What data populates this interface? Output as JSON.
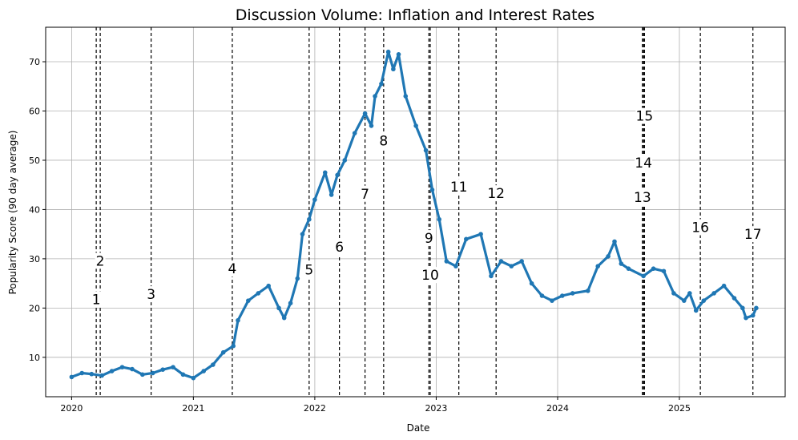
{
  "chart_data": {
    "type": "scatter",
    "title": "Discussion Volume: Inflation and Interest Rates",
    "xlabel": "Date",
    "ylabel": "Popularity Score (90 day average)",
    "xlim": [
      "2019-10-15",
      "2025-11-15"
    ],
    "ylim": [
      2,
      77
    ],
    "x_ticks": [
      "2020-01-01",
      "2021-01-01",
      "2022-01-01",
      "2023-01-01",
      "2024-01-01",
      "2025-01-01"
    ],
    "x_tick_labels": [
      "2020",
      "2021",
      "2022",
      "2023",
      "2024",
      "2025"
    ],
    "y_ticks": [
      10,
      20,
      30,
      40,
      50,
      60,
      70
    ],
    "grid": true,
    "colors": {
      "series": "#1f77b4",
      "grid": "#b0b0b0",
      "event_line": "#000000"
    },
    "series": [
      {
        "points": [
          [
            "2020-01-01",
            6.0
          ],
          [
            "2020-02-01",
            6.8
          ],
          [
            "2020-03-01",
            6.6
          ],
          [
            "2020-04-01",
            6.3
          ],
          [
            "2020-05-01",
            7.2
          ],
          [
            "2020-06-01",
            8.0
          ],
          [
            "2020-07-01",
            7.6
          ],
          [
            "2020-08-01",
            6.5
          ],
          [
            "2020-09-01",
            6.8
          ],
          [
            "2020-10-01",
            7.5
          ],
          [
            "2020-11-01",
            8.0
          ],
          [
            "2020-12-01",
            6.5
          ],
          [
            "2021-01-01",
            5.8
          ],
          [
            "2021-02-01",
            7.2
          ],
          [
            "2021-03-01",
            8.5
          ],
          [
            "2021-04-01",
            11.0
          ],
          [
            "2021-05-01",
            12.3
          ],
          [
            "2021-05-15",
            17.5
          ],
          [
            "2021-06-15",
            21.5
          ],
          [
            "2021-07-15",
            23.0
          ],
          [
            "2021-08-15",
            24.5
          ],
          [
            "2021-09-15",
            20.0
          ],
          [
            "2021-10-01",
            18.0
          ],
          [
            "2021-10-20",
            21.0
          ],
          [
            "2021-11-10",
            26.0
          ],
          [
            "2021-11-25",
            35.0
          ],
          [
            "2021-12-15",
            38.0
          ],
          [
            "2022-01-01",
            42.0
          ],
          [
            "2022-02-01",
            47.5
          ],
          [
            "2022-02-20",
            43.0
          ],
          [
            "2022-03-10",
            47.0
          ],
          [
            "2022-04-01",
            50.0
          ],
          [
            "2022-05-01",
            55.5
          ],
          [
            "2022-06-01",
            59.5
          ],
          [
            "2022-06-20",
            57.0
          ],
          [
            "2022-07-01",
            63.0
          ],
          [
            "2022-07-20",
            65.5
          ],
          [
            "2022-08-10",
            72.0
          ],
          [
            "2022-08-25",
            68.5
          ],
          [
            "2022-09-10",
            71.5
          ],
          [
            "2022-10-01",
            63.0
          ],
          [
            "2022-11-01",
            57.0
          ],
          [
            "2022-12-01",
            52.0
          ],
          [
            "2022-12-20",
            44.0
          ],
          [
            "2023-01-10",
            38.0
          ],
          [
            "2023-02-01",
            29.5
          ],
          [
            "2023-03-01",
            28.5
          ],
          [
            "2023-04-01",
            34.0
          ],
          [
            "2023-05-15",
            35.0
          ],
          [
            "2023-06-15",
            26.5
          ],
          [
            "2023-07-15",
            29.5
          ],
          [
            "2023-08-15",
            28.5
          ],
          [
            "2023-09-15",
            29.5
          ],
          [
            "2023-10-15",
            25.0
          ],
          [
            "2023-11-15",
            22.5
          ],
          [
            "2023-12-15",
            21.5
          ],
          [
            "2024-01-15",
            22.5
          ],
          [
            "2024-02-15",
            23.0
          ],
          [
            "2024-04-01",
            23.5
          ],
          [
            "2024-05-01",
            28.5
          ],
          [
            "2024-06-01",
            30.5
          ],
          [
            "2024-06-20",
            33.5
          ],
          [
            "2024-07-10",
            29.0
          ],
          [
            "2024-08-01",
            28.0
          ],
          [
            "2024-09-15",
            26.5
          ],
          [
            "2024-10-15",
            28.0
          ],
          [
            "2024-11-15",
            27.5
          ],
          [
            "2024-12-15",
            23.0
          ],
          [
            "2025-01-15",
            21.5
          ],
          [
            "2025-02-01",
            23.0
          ],
          [
            "2025-02-20",
            19.5
          ],
          [
            "2025-03-15",
            21.5
          ],
          [
            "2025-04-15",
            23.0
          ],
          [
            "2025-05-15",
            24.5
          ],
          [
            "2025-06-15",
            22.0
          ],
          [
            "2025-07-10",
            20.0
          ],
          [
            "2025-07-20",
            18.0
          ],
          [
            "2025-08-10",
            18.5
          ],
          [
            "2025-08-20",
            20.0
          ]
        ]
      }
    ],
    "events": [
      {
        "label": "1",
        "date": "2020-03-15",
        "label_y": 21.8
      },
      {
        "label": "2",
        "date": "2020-03-27",
        "label_y": 29.6
      },
      {
        "label": "3",
        "date": "2020-08-27",
        "label_y": 22.8
      },
      {
        "label": "4",
        "date": "2021-04-28",
        "label_y": 28.0
      },
      {
        "label": "5",
        "date": "2021-12-15",
        "label_y": 27.8
      },
      {
        "label": "6",
        "date": "2022-03-16",
        "label_y": 32.4
      },
      {
        "label": "7",
        "date": "2022-06-01",
        "label_y": 43.2
      },
      {
        "label": "8",
        "date": "2022-07-27",
        "label_y": 54.0
      },
      {
        "label": "9",
        "date": "2022-12-10",
        "label_y": 34.2
      },
      {
        "label": "10",
        "date": "2022-12-14",
        "label_y": 26.7
      },
      {
        "label": "11",
        "date": "2023-03-10",
        "label_y": 44.6
      },
      {
        "label": "12",
        "date": "2023-06-30",
        "label_y": 43.3
      },
      {
        "label": "13",
        "date": "2024-09-12",
        "label_y": 42.5
      },
      {
        "label": "14",
        "date": "2024-09-15",
        "label_y": 49.5
      },
      {
        "label": "15",
        "date": "2024-09-18",
        "label_y": 59.0
      },
      {
        "label": "16",
        "date": "2025-03-05",
        "label_y": 36.4
      },
      {
        "label": "17",
        "date": "2025-08-10",
        "label_y": 35.0
      }
    ]
  }
}
